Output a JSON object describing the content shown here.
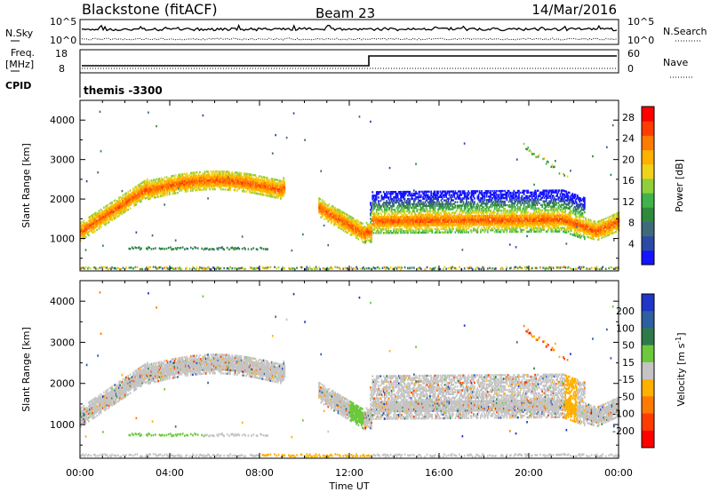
{
  "header": {
    "station": "Blackstone (fitACF)",
    "beam": "Beam 23",
    "date": "14/Mar/2016"
  },
  "status_panels": {
    "nsky_label": "N.Sky",
    "nsearch_label": "N.Search",
    "nsky_ticks": [
      "10^5",
      "10^0"
    ],
    "nsearch_ticks": [
      "10^5",
      "10^0"
    ],
    "freq_label": "Freq.",
    "freq_unit": "[MHz]",
    "freq_ticks": [
      "18",
      "8"
    ],
    "nave_label": "Nave",
    "nave_ticks": [
      "60",
      "0"
    ],
    "cpid_label": "CPID",
    "cpid_value": "themis -3300"
  },
  "chart_data": [
    {
      "type": "heatmap",
      "panel": "power",
      "xlabel": "Time UT",
      "ylabel": "Slant Range [km]",
      "x_ticks": [
        "00:00",
        "04:00",
        "08:00",
        "12:00",
        "16:00",
        "20:00",
        "00:00"
      ],
      "x_range_hours": [
        0,
        24
      ],
      "y_ticks": [
        1000,
        2000,
        3000,
        4000
      ],
      "ylim": [
        180,
        4500
      ],
      "colorbar": {
        "label": "Power [dB]",
        "ticks": [
          4,
          8,
          12,
          16,
          20,
          24,
          28
        ],
        "range": [
          0,
          30
        ],
        "colors": [
          "#1414ff",
          "#2a4aa6",
          "#3f6a7a",
          "#2e8a3c",
          "#3fb24a",
          "#8fcf3a",
          "#f0d21a",
          "#ffb000",
          "#ff7a00",
          "#ff3c00",
          "#ff0000"
        ]
      }
    },
    {
      "type": "heatmap",
      "panel": "velocity",
      "xlabel": "Time UT",
      "ylabel": "Slant Range [km]",
      "x_ticks": [
        "00:00",
        "04:00",
        "08:00",
        "12:00",
        "16:00",
        "20:00",
        "00:00"
      ],
      "x_range_hours": [
        0,
        24
      ],
      "y_ticks": [
        1000,
        2000,
        3000,
        4000
      ],
      "ylim": [
        180,
        4500
      ],
      "colorbar": {
        "label": "Velocity [m s^-1]",
        "ticks": [
          200,
          100,
          50,
          15,
          -15,
          -50,
          -100,
          -200
        ],
        "colors": [
          "#1f36c8",
          "#2e5fa0",
          "#2f7a4a",
          "#6cc83c",
          "#c4c4c4",
          "#ffb000",
          "#ff7a00",
          "#ff3c00",
          "#ff0000"
        ]
      }
    }
  ]
}
